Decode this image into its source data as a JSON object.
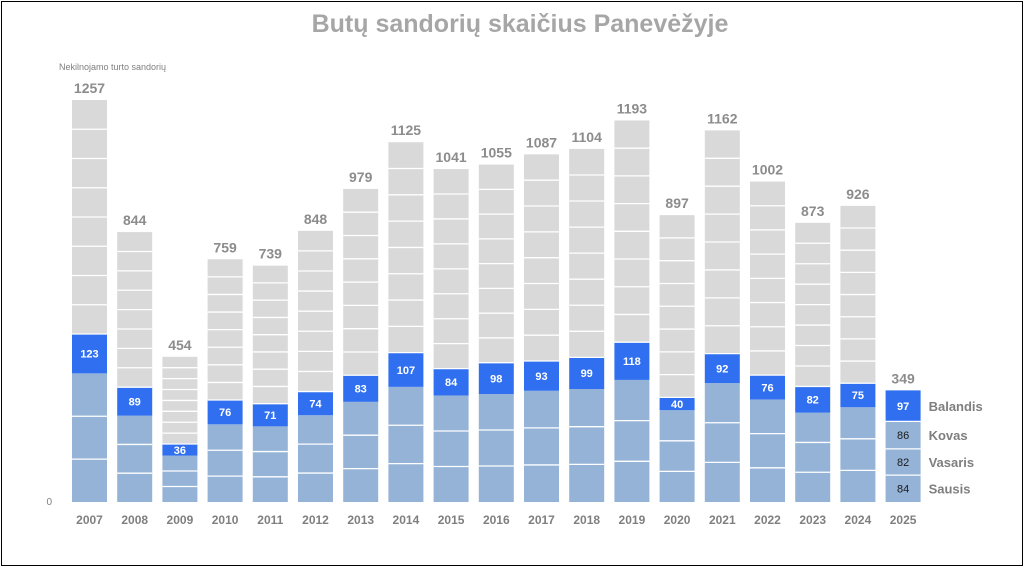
{
  "chart_data": {
    "type": "bar",
    "title": "Butų sandorių skaičius Panevėžyje",
    "ylabel": "Nekilnojamo turto sandorių",
    "y_zero_label": "0",
    "categories": [
      "2007",
      "2008",
      "2009",
      "2010",
      "2011",
      "2012",
      "2013",
      "2014",
      "2015",
      "2016",
      "2017",
      "2018",
      "2019",
      "2020",
      "2021",
      "2022",
      "2023",
      "2024",
      "2025"
    ],
    "totals": [
      1257,
      844,
      454,
      759,
      739,
      848,
      979,
      1125,
      1041,
      1055,
      1087,
      1104,
      1193,
      897,
      1162,
      1002,
      873,
      926,
      349
    ],
    "april_values": [
      123,
      89,
      36,
      76,
      71,
      74,
      83,
      107,
      84,
      98,
      93,
      99,
      118,
      40,
      92,
      76,
      82,
      75,
      97
    ],
    "months_2025": [
      {
        "name": "Sausis",
        "value": 84
      },
      {
        "name": "Vasaris",
        "value": 82
      },
      {
        "name": "Kovas",
        "value": 86
      },
      {
        "name": "Balandis",
        "value": 97
      }
    ],
    "ylim": [
      0,
      1300
    ],
    "colors": {
      "year_rest": "#d9d9d9",
      "jan_mar": "#95b3d7",
      "april": "#2f6ff0",
      "title": "#a6a6a6",
      "labels": "#7f7f7f"
    },
    "grid": false
  }
}
